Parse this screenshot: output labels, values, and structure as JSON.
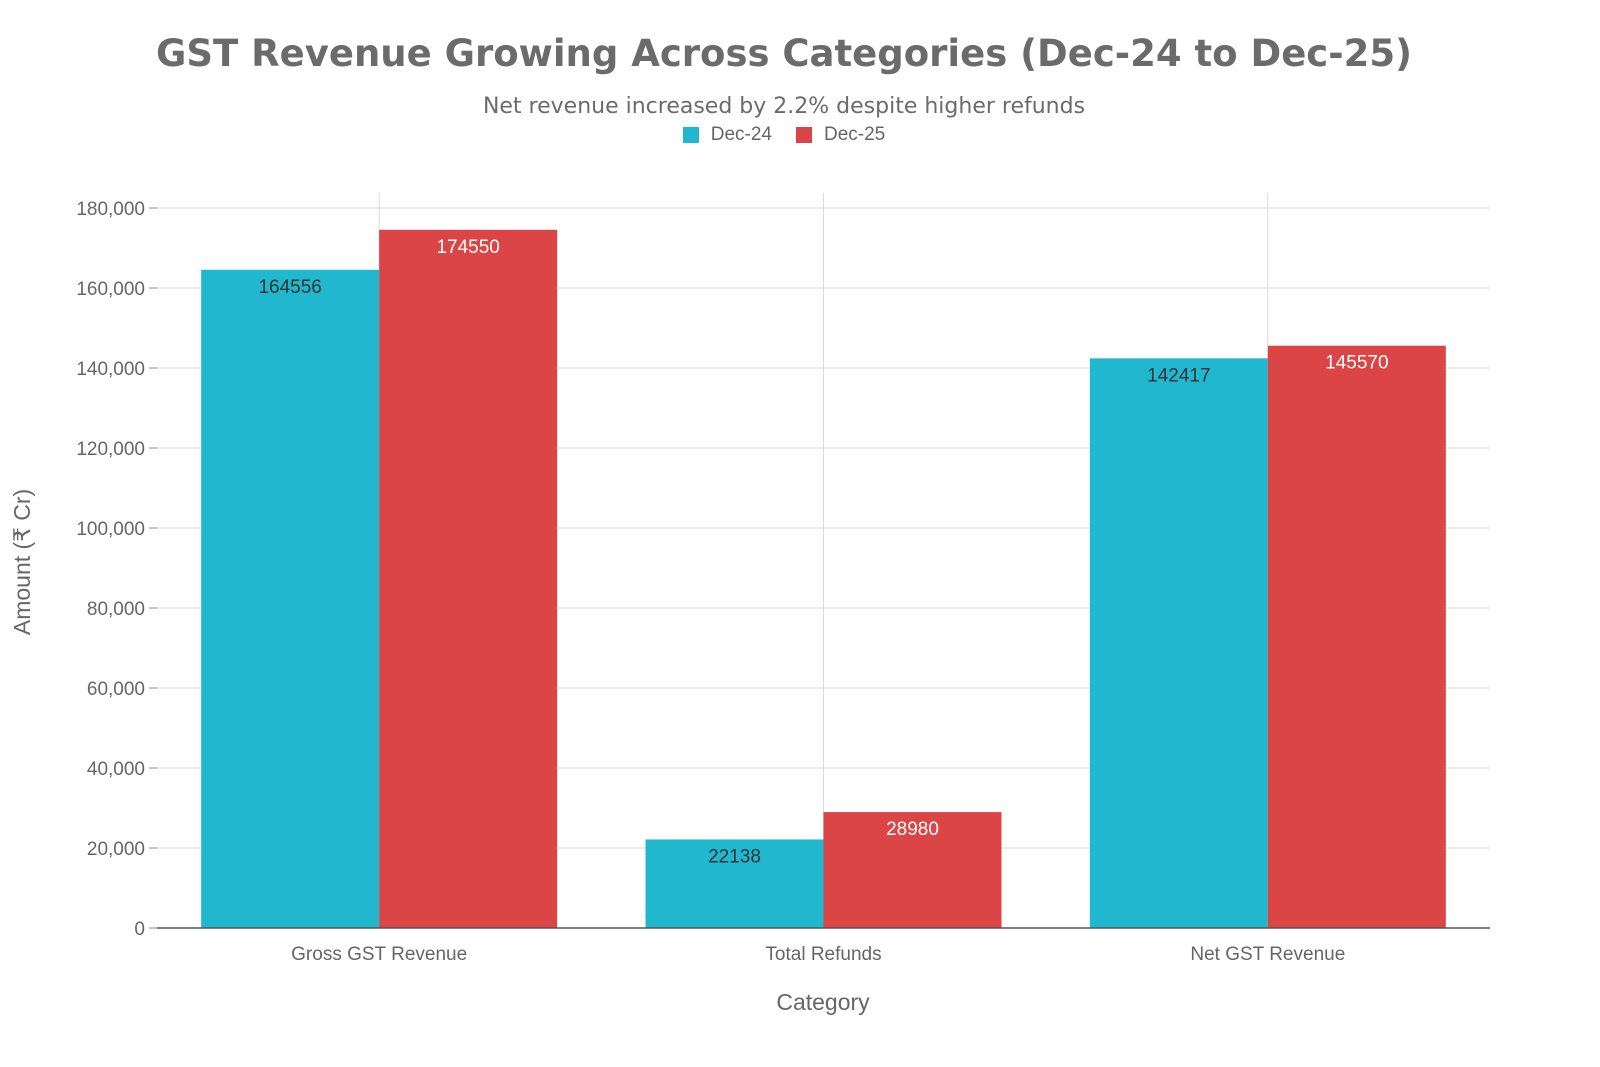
{
  "chart_data": {
    "type": "bar",
    "title": "GST Revenue Growing Across Categories (Dec-24 to Dec-25)",
    "subtitle": "Net revenue increased by 2.2% despite higher refunds",
    "xlabel": "Category",
    "ylabel": "Amount (₹ Cr)",
    "categories": [
      "Gross GST Revenue",
      "Total Refunds",
      "Net GST Revenue"
    ],
    "series": [
      {
        "name": "Dec-24",
        "color": "#21B8CF",
        "values": [
          164556,
          22138,
          142417
        ]
      },
      {
        "name": "Dec-25",
        "color": "#DB4545",
        "values": [
          174550,
          28980,
          145570
        ]
      }
    ],
    "ylim": [
      0,
      180000
    ],
    "yticks": [
      0,
      20000,
      40000,
      60000,
      80000,
      100000,
      120000,
      140000,
      160000,
      180000
    ],
    "ytick_labels": [
      "0",
      "20,000",
      "40,000",
      "60,000",
      "80,000",
      "100,000",
      "120,000",
      "140,000",
      "160,000",
      "180,000"
    ],
    "grid": true,
    "legend_position": "top-center"
  }
}
